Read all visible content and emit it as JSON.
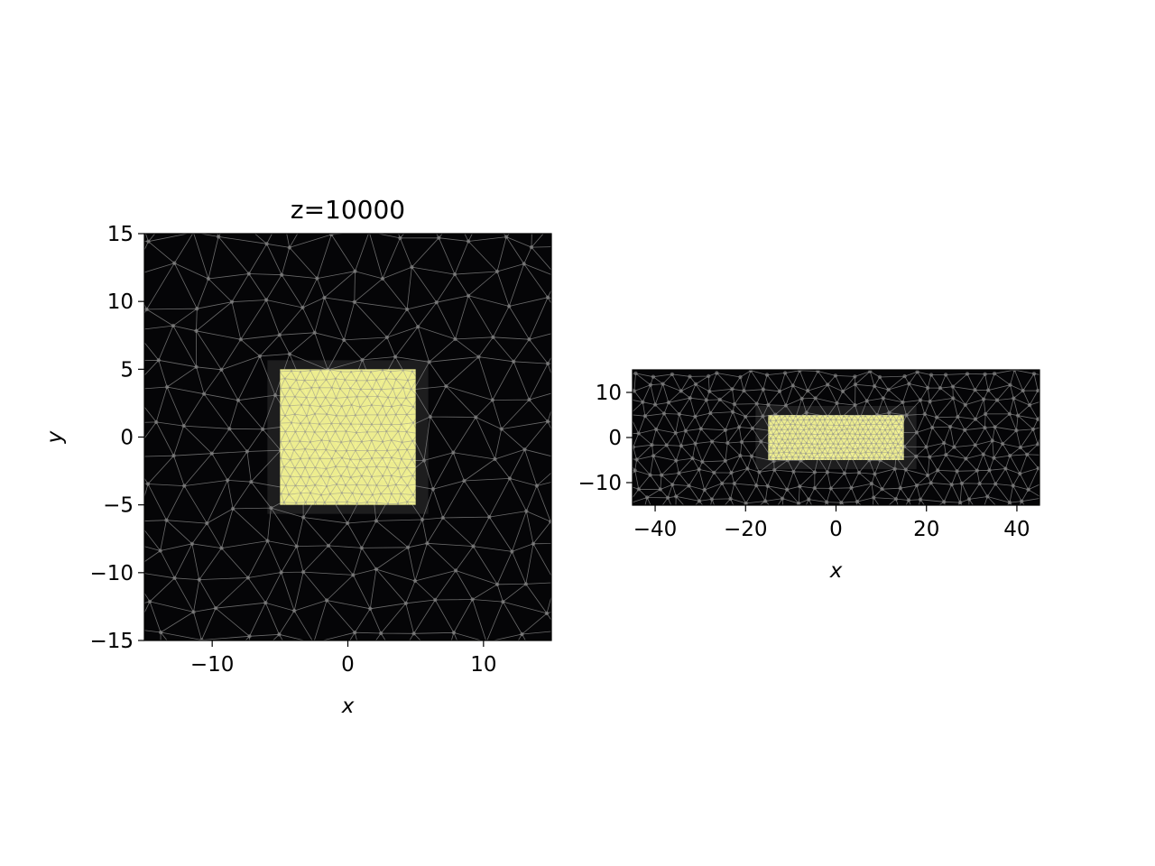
{
  "figure": {
    "background": "#ffffff",
    "mesh_background": "#050507",
    "mesh_line_color": "#8c8c8c",
    "highlight_color": "#ffff99"
  },
  "chart_data": [
    {
      "type": "heatmap",
      "title": "z=10000",
      "xlabel": "x",
      "ylabel": "y",
      "xlim": [
        -15,
        15
      ],
      "ylim": [
        -15,
        15
      ],
      "xticks": [
        -10,
        0,
        10
      ],
      "yticks": [
        -15,
        -10,
        -5,
        0,
        5,
        10,
        15
      ],
      "highlight_region": {
        "x": [
          -5,
          5
        ],
        "y": [
          -5,
          5
        ]
      },
      "mesh": {
        "coarse_spacing": 2.6,
        "fine_spacing": 0.75
      },
      "grid": false,
      "legend": "none"
    },
    {
      "type": "heatmap",
      "title": "",
      "xlabel": "x",
      "ylabel": "",
      "xlim": [
        -45,
        45
      ],
      "ylim": [
        -15,
        15
      ],
      "xticks": [
        -40,
        -20,
        0,
        20,
        40
      ],
      "yticks": [
        -10,
        0,
        10
      ],
      "highlight_region": {
        "x": [
          -15,
          15
        ],
        "y": [
          -5,
          5
        ]
      },
      "mesh": {
        "coarse_spacing": 3.6,
        "fine_spacing": 1.2
      },
      "grid": false,
      "legend": "none"
    }
  ]
}
